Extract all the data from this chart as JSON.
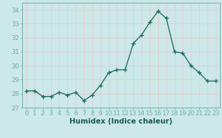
{
  "x": [
    0,
    1,
    2,
    3,
    4,
    5,
    6,
    7,
    8,
    9,
    10,
    11,
    12,
    13,
    14,
    15,
    16,
    17,
    18,
    19,
    20,
    21,
    22,
    23
  ],
  "y": [
    28.2,
    28.2,
    27.8,
    27.8,
    28.1,
    27.9,
    28.1,
    27.5,
    27.9,
    28.6,
    29.5,
    29.7,
    29.7,
    31.6,
    32.2,
    33.1,
    33.9,
    33.4,
    31.0,
    30.9,
    30.0,
    29.5,
    28.9,
    28.9
  ],
  "line_color": "#1a6b5a",
  "marker": "o",
  "marker_size": 2.2,
  "plot_bg_color": "#cce8e8",
  "fig_bg_color": "#cce8e8",
  "grid_color": "#e8c8c8",
  "xlabel": "Humidex (Indice chaleur)",
  "ylim": [
    27,
    34.5
  ],
  "xlim": [
    -0.5,
    23.5
  ],
  "yticks": [
    27,
    28,
    29,
    30,
    31,
    32,
    33,
    34
  ],
  "xlabel_fontsize": 7.5,
  "ylabel_fontsize": 7.5,
  "tick_fontsize": 6.5,
  "line_width": 1.0
}
